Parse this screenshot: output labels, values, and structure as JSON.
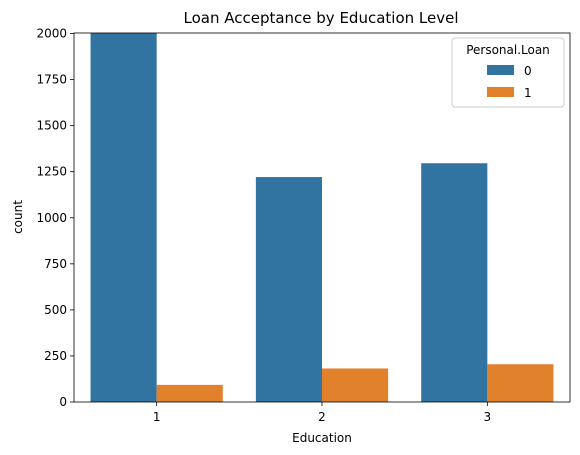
{
  "chart_data": {
    "type": "bar",
    "title": "Loan Acceptance by Education Level",
    "xlabel": "Education",
    "ylabel": "count",
    "categories": [
      "1",
      "2",
      "3"
    ],
    "series": [
      {
        "name": "0",
        "values": [
          2003,
          1221,
          1296
        ]
      },
      {
        "name": "1",
        "values": [
          93,
          182,
          205
        ]
      }
    ],
    "ylim": [
      0,
      2003
    ],
    "yticks": [
      0,
      250,
      500,
      750,
      1000,
      1250,
      1500,
      1750,
      2000
    ],
    "legend": {
      "title": "Personal.Loan",
      "position": "top-right"
    },
    "colors": [
      "#3274a1",
      "#e1812c"
    ],
    "grid": false
  }
}
